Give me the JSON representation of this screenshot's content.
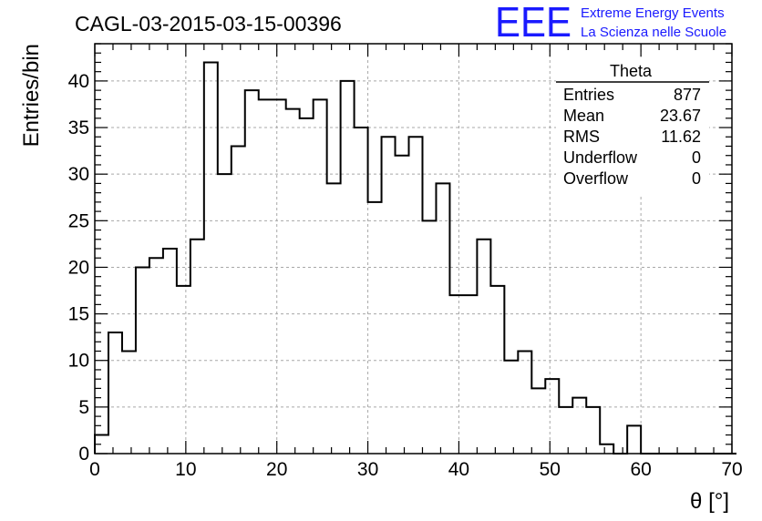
{
  "title": "CAGL-03-2015-03-15-00396",
  "logo": {
    "mark": "EEE",
    "line1": "Extreme Energy Events",
    "line2": "La Scienza nelle Scuole",
    "color": "#1a1aff"
  },
  "stats": {
    "name": "Theta",
    "rows": [
      {
        "label": "Entries",
        "value": "877"
      },
      {
        "label": "Mean",
        "value": "23.67"
      },
      {
        "label": "RMS",
        "value": "11.62"
      },
      {
        "label": "Underflow",
        "value": "0"
      },
      {
        "label": "Overflow",
        "value": "0"
      }
    ]
  },
  "chart_data": {
    "type": "bar",
    "xlabel": "θ [°]",
    "ylabel": "Entries/bin",
    "xlim": [
      0,
      70
    ],
    "ylim": [
      0,
      44
    ],
    "bin_width": 1.5,
    "grid": true,
    "x_ticks": [
      0,
      10,
      20,
      30,
      40,
      50,
      60,
      70
    ],
    "y_ticks": [
      0,
      5,
      10,
      15,
      20,
      25,
      30,
      35,
      40
    ],
    "values": [
      2,
      13,
      11,
      20,
      21,
      22,
      18,
      23,
      42,
      30,
      33,
      39,
      38,
      38,
      37,
      36,
      38,
      29,
      40,
      35,
      27,
      34,
      32,
      34,
      25,
      29,
      17,
      17,
      23,
      18,
      10,
      11,
      7,
      8,
      5,
      6,
      5,
      1,
      0,
      3,
      0,
      0,
      0,
      0,
      0,
      0,
      0
    ]
  }
}
